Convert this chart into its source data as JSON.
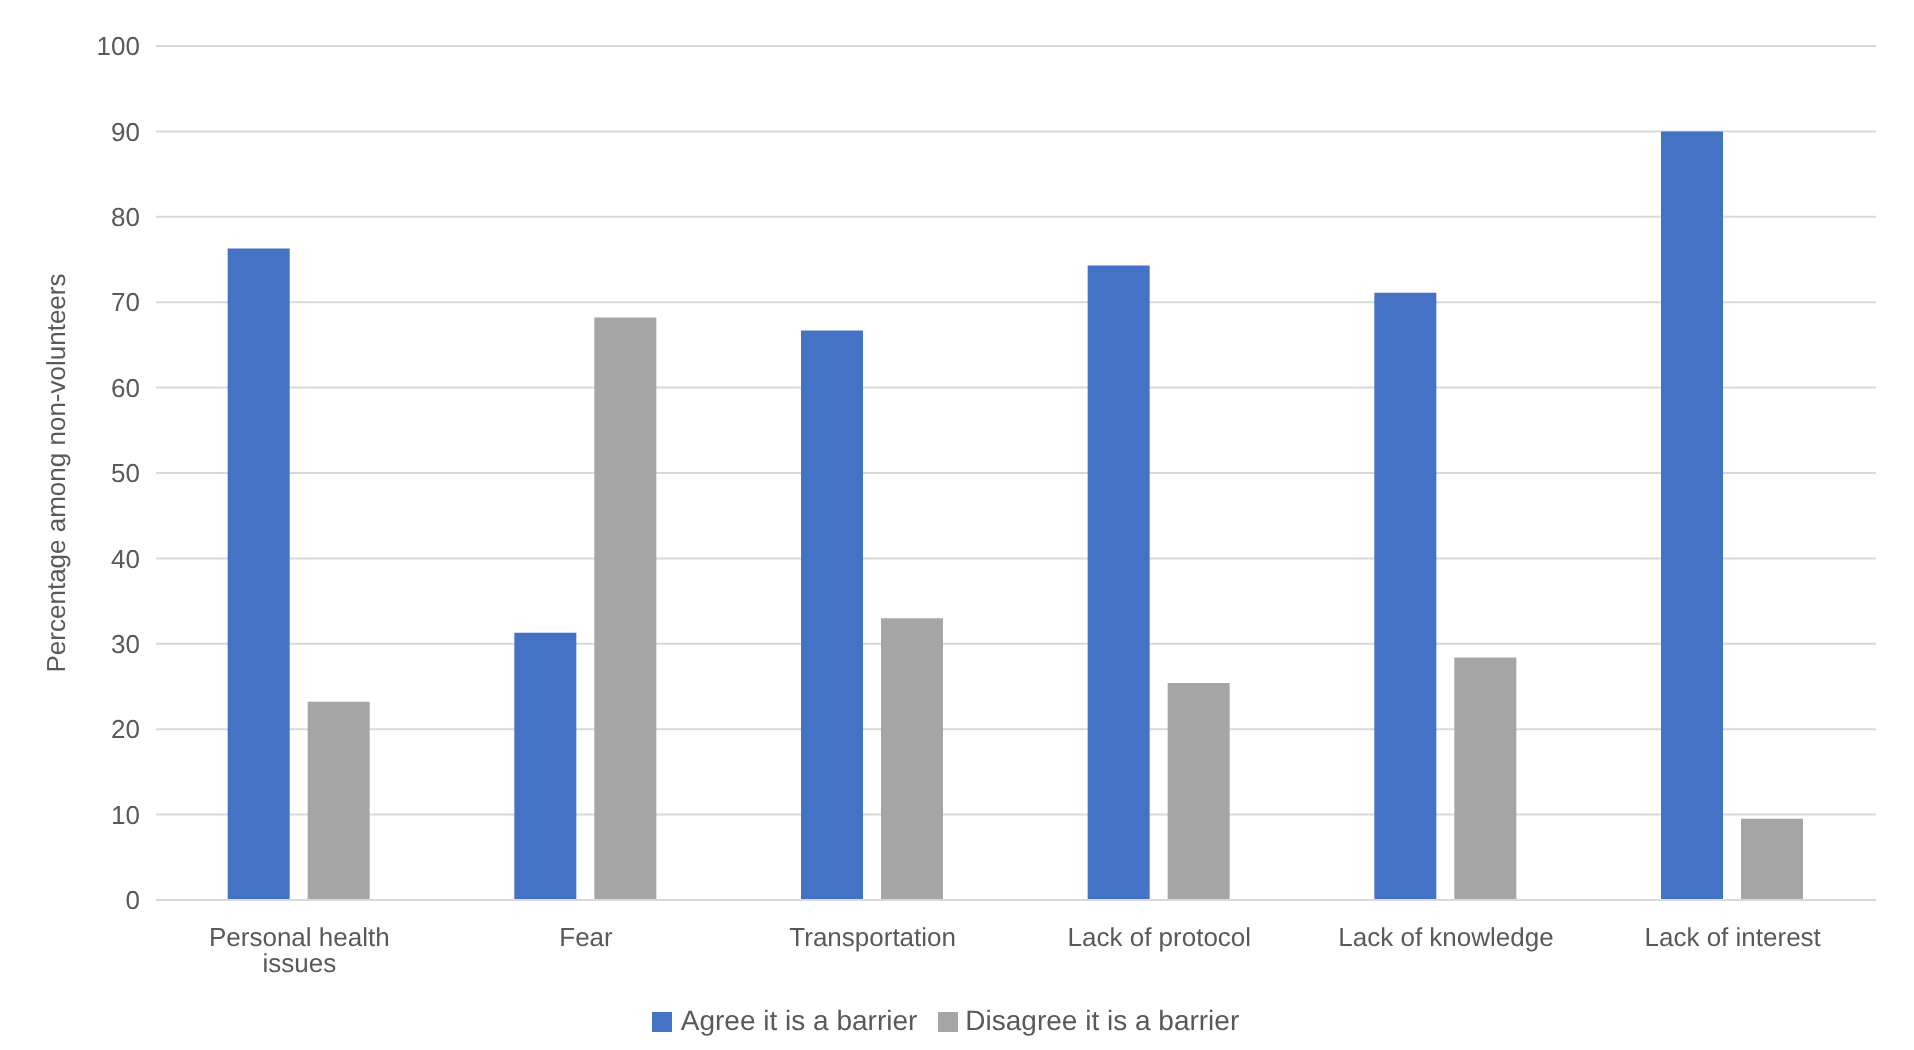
{
  "chart_data": {
    "type": "bar",
    "ylabel": "Percentage among non-volunteers",
    "categories": [
      "Personal health issues",
      "Fear",
      "Transportation",
      "Lack of protocol",
      "Lack of knowledge",
      "Lack of interest"
    ],
    "series": [
      {
        "name": "Agree it is a barrier",
        "color": "#4472c4",
        "values": [
          76.3,
          31.3,
          66.7,
          74.3,
          71.1,
          90.0
        ]
      },
      {
        "name": "Disagree it is a barrier",
        "color": "#a5a5a5",
        "values": [
          23.2,
          68.2,
          33.0,
          25.4,
          28.4,
          9.5
        ]
      }
    ],
    "ylim": [
      0,
      100
    ],
    "yticks": [
      0,
      10,
      20,
      30,
      40,
      50,
      60,
      70,
      80,
      90,
      100
    ],
    "grid": "y",
    "legend": "bottom"
  }
}
